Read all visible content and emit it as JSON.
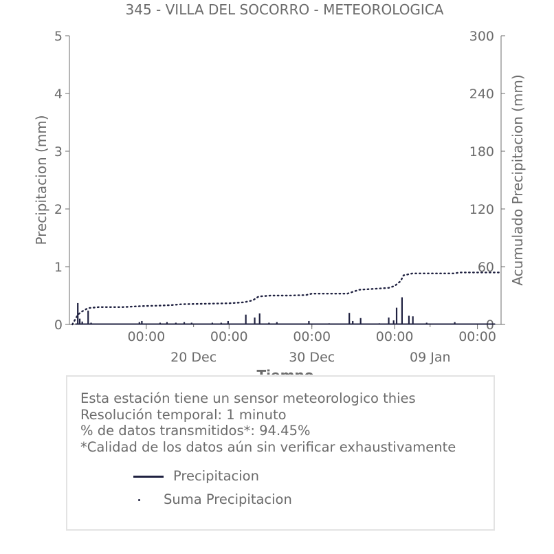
{
  "chart_data": {
    "type": "line",
    "title": "345 - VILLA DEL SOCORRO - METEOROLOGICA",
    "xlabel": "Tiempo",
    "ylabel": "Precipitacion (mm)",
    "ylabel_right": "Acumulado Precipitacion (mm)",
    "x_range": [
      "2024-12-09T12:00",
      "2025-01-15T00:00"
    ],
    "ylim": [
      0,
      5
    ],
    "ylim_right": [
      0,
      300
    ],
    "yticks": [
      "0",
      "1",
      "2",
      "3",
      "4",
      "5"
    ],
    "yticks_right": [
      "0",
      "60",
      "120",
      "180",
      "240",
      "300"
    ],
    "xticks_major": [
      {
        "x": "2024-12-16T00:00",
        "label": "00:00"
      },
      {
        "x": "2024-12-23T00:00",
        "label": "00:00"
      },
      {
        "x": "2024-12-30T00:00",
        "label": "00:00"
      },
      {
        "x": "2025-01-06T00:00",
        "label": "00:00"
      },
      {
        "x": "2025-01-13T00:00",
        "label": "00:00"
      }
    ],
    "xticks_minor": [
      {
        "x": "2024-12-20T00:00",
        "label": "20 Dec"
      },
      {
        "x": "2024-12-30T00:00",
        "label": "30 Dec"
      },
      {
        "x": "2025-01-09T00:00",
        "label": "09 Jan"
      }
    ],
    "grid": false,
    "legend_position": "bottom",
    "series": [
      {
        "name": "Precipitacion",
        "axis": "left",
        "style": "solid",
        "color": "#1f2140",
        "points": [
          [
            "2024-12-10T05:00",
            0.37
          ],
          [
            "2024-12-10T09:00",
            0.1
          ],
          [
            "2024-12-10T14:00",
            0.05
          ],
          [
            "2024-12-11T02:00",
            0.24
          ],
          [
            "2024-12-11T08:00",
            0.03
          ],
          [
            "2024-12-15T10:00",
            0.04
          ],
          [
            "2024-12-15T15:00",
            0.06
          ],
          [
            "2024-12-17T04:00",
            0.03
          ],
          [
            "2024-12-17T18:00",
            0.04
          ],
          [
            "2024-12-18T12:00",
            0.03
          ],
          [
            "2024-12-19T05:00",
            0.04
          ],
          [
            "2024-12-19T20:00",
            0.03
          ],
          [
            "2024-12-21T14:00",
            0.03
          ],
          [
            "2024-12-22T08:00",
            0.03
          ],
          [
            "2024-12-22T22:00",
            0.06
          ],
          [
            "2024-12-24T10:00",
            0.17
          ],
          [
            "2024-12-25T04:00",
            0.12
          ],
          [
            "2024-12-25T14:00",
            0.19
          ],
          [
            "2024-12-26T09:00",
            0.03
          ],
          [
            "2024-12-27T01:00",
            0.04
          ],
          [
            "2024-12-29T18:00",
            0.06
          ],
          [
            "2024-12-31T11:00",
            0.02
          ],
          [
            "2025-01-02T04:00",
            0.2
          ],
          [
            "2025-01-02T11:00",
            0.06
          ],
          [
            "2025-01-03T03:00",
            0.11
          ],
          [
            "2025-01-04T17:00",
            0.02
          ],
          [
            "2025-01-05T12:00",
            0.12
          ],
          [
            "2025-01-05T22:00",
            0.07
          ],
          [
            "2025-01-06T04:00",
            0.29
          ],
          [
            "2025-01-06T15:00",
            0.47
          ],
          [
            "2025-01-07T05:00",
            0.15
          ],
          [
            "2025-01-07T13:00",
            0.14
          ],
          [
            "2025-01-08T17:00",
            0.03
          ],
          [
            "2025-01-11T02:00",
            0.04
          ]
        ]
      },
      {
        "name": "Suma Precipitacion",
        "axis": "right",
        "style": "dotted",
        "color": "#1f2140",
        "points": [
          [
            "2024-12-09T18:00",
            0
          ],
          [
            "2024-12-10T05:00",
            10
          ],
          [
            "2024-12-10T12:00",
            13
          ],
          [
            "2024-12-11T02:00",
            17
          ],
          [
            "2024-12-12T00:00",
            18
          ],
          [
            "2024-12-14T00:00",
            18
          ],
          [
            "2024-12-15T12:00",
            19
          ],
          [
            "2024-12-17T00:00",
            19.5
          ],
          [
            "2024-12-18T00:00",
            20
          ],
          [
            "2024-12-19T00:00",
            21
          ],
          [
            "2024-12-21T00:00",
            21.5
          ],
          [
            "2024-12-23T00:00",
            22
          ],
          [
            "2024-12-24T06:00",
            23
          ],
          [
            "2024-12-25T00:00",
            25
          ],
          [
            "2024-12-25T12:00",
            29
          ],
          [
            "2024-12-26T12:00",
            30
          ],
          [
            "2024-12-28T00:00",
            30
          ],
          [
            "2024-12-29T12:00",
            30.5
          ],
          [
            "2024-12-30T00:00",
            32
          ],
          [
            "2025-01-02T00:00",
            32
          ],
          [
            "2025-01-02T12:00",
            34
          ],
          [
            "2025-01-03T00:00",
            36
          ],
          [
            "2025-01-05T12:00",
            38
          ],
          [
            "2025-01-06T00:00",
            40
          ],
          [
            "2025-01-06T12:00",
            45
          ],
          [
            "2025-01-06T18:00",
            51
          ],
          [
            "2025-01-07T12:00",
            53
          ],
          [
            "2025-01-08T00:00",
            53
          ],
          [
            "2025-01-11T00:00",
            53
          ],
          [
            "2025-01-11T12:00",
            54
          ],
          [
            "2025-01-15T00:00",
            54
          ]
        ]
      }
    ]
  },
  "info": {
    "lines": [
      "Esta estación tiene un sensor meteorologico thies",
      "Resolución temporal: 1 minuto",
      "% de datos transmitidos*: 94.45%",
      "*Calidad de los datos aún sin verificar exhaustivamente"
    ]
  },
  "legend": {
    "items": [
      "Precipitacion",
      "Suma Precipitacion"
    ]
  },
  "colors": {
    "series": "#1f2140",
    "text": "#6b6b6b",
    "box_border": "#e3e3e3"
  }
}
